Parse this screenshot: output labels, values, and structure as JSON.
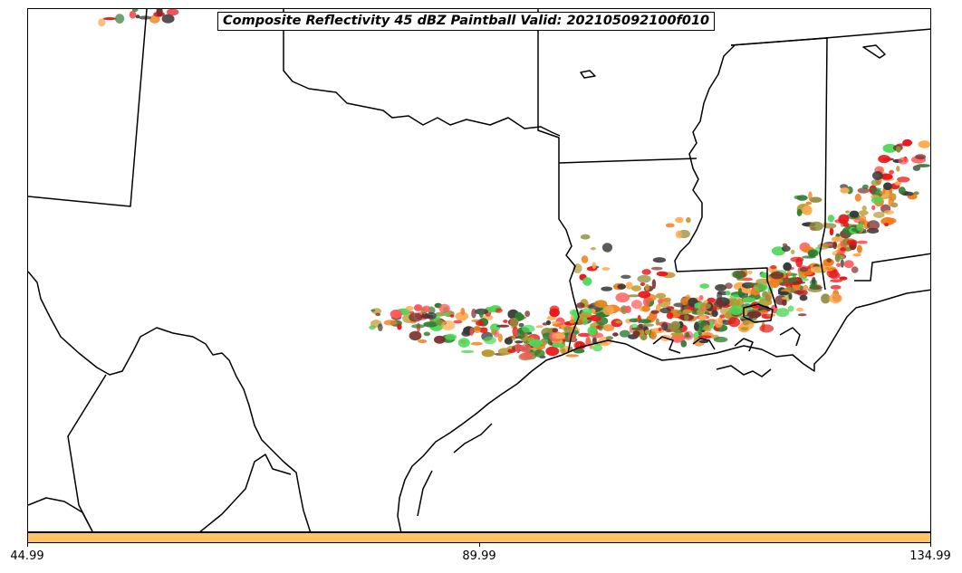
{
  "title": "Composite Reflectivity 45 dBZ Paintball Valid: 202105092100f010",
  "colorbar": {
    "color": "#FFC266",
    "tick_labels": [
      "44.99",
      "89.99",
      "134.99"
    ]
  },
  "paintball_colors": [
    "#E8161A",
    "#FF5A5A",
    "#F07F1E",
    "#FFA94D",
    "#B89A2E",
    "#8C8C3C",
    "#2E7D32",
    "#4CD957",
    "#3A3A3A",
    "#7A2E2E"
  ]
}
